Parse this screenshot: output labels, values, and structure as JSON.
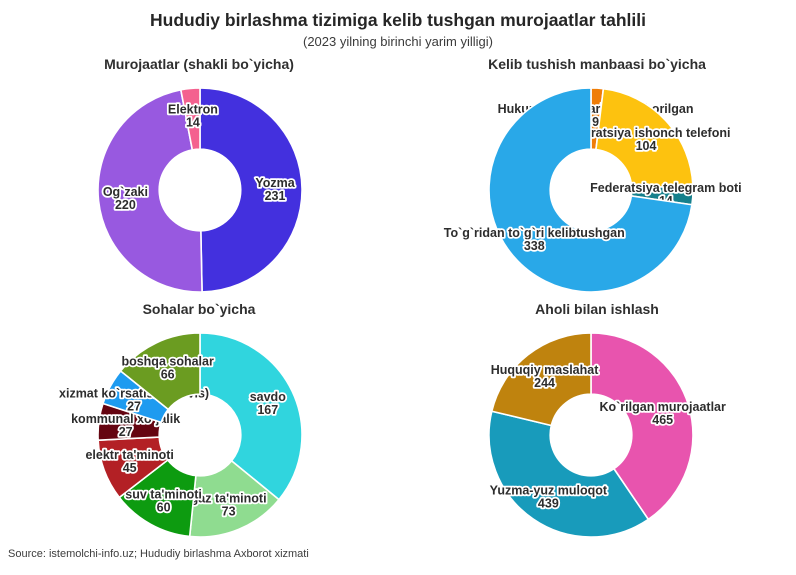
{
  "header": {
    "title": "Hududiy birlashma tizimiga kelib tushgan murojaatlar tahlili",
    "subtitle": "(2023 yilning birinchi yarim yilligi)"
  },
  "footer": {
    "source": "Source: istemolchi-info.uz; Hududiy birlashma Axborot xizmati"
  },
  "chart_data": [
    {
      "type": "pie",
      "title": "Murojaatlar (shakli bo`yicha)",
      "hole": 0.4,
      "start_angle": "top",
      "direction": "clockwise",
      "legend": "none",
      "labels": [
        "Yozma",
        "Og`zaki",
        "Elektron"
      ],
      "values": [
        231,
        220,
        14
      ],
      "colors": [
        "#4330de",
        "#9859e0",
        "#f4618f"
      ]
    },
    {
      "type": "pie",
      "title": "Kelib tushish manbaasi bo`yicha",
      "hole": 0.4,
      "start_angle": "top",
      "direction": "clockwise",
      "legend": "none",
      "labels": [
        "Hukumat idoralaridan yuborilgan",
        "Federatsiya ishonch telefoni",
        "Federatsiya telegram boti",
        "To`g`ridan to`g`ri kelibtushgan"
      ],
      "values": [
        9,
        104,
        14,
        338
      ],
      "colors": [
        "#ef7d08",
        "#fdc20f",
        "#16808c",
        "#29a8e8"
      ]
    },
    {
      "type": "pie",
      "title": "Sohalar bo`yicha",
      "hole": 0.4,
      "start_angle": "top",
      "direction": "clockwise",
      "legend": "none",
      "labels": [
        "savdo",
        "gaz ta'minoti",
        "suv ta'minoti",
        "elektr ta'minoti",
        "kommunal xo`jalik",
        "xizmat ko`rsatish (servis)",
        "boshqa sohalar"
      ],
      "values": [
        167,
        73,
        60,
        45,
        27,
        27,
        66
      ],
      "colors": [
        "#30d5de",
        "#8fdc90",
        "#0d9b10",
        "#b32025",
        "#650511",
        "#1e9bf0",
        "#6b9c21"
      ]
    },
    {
      "type": "pie",
      "title": "Aholi bilan ishlash",
      "hole": 0.4,
      "start_angle": "top",
      "direction": "clockwise",
      "legend": "none",
      "labels": [
        "Ko`rilgan murojaatlar",
        "Yuzma-yuz muloqot",
        "Huquqiy maslahat"
      ],
      "values": [
        465,
        439,
        244
      ],
      "colors": [
        "#e854ae",
        "#189bbb",
        "#bf830e"
      ]
    }
  ]
}
